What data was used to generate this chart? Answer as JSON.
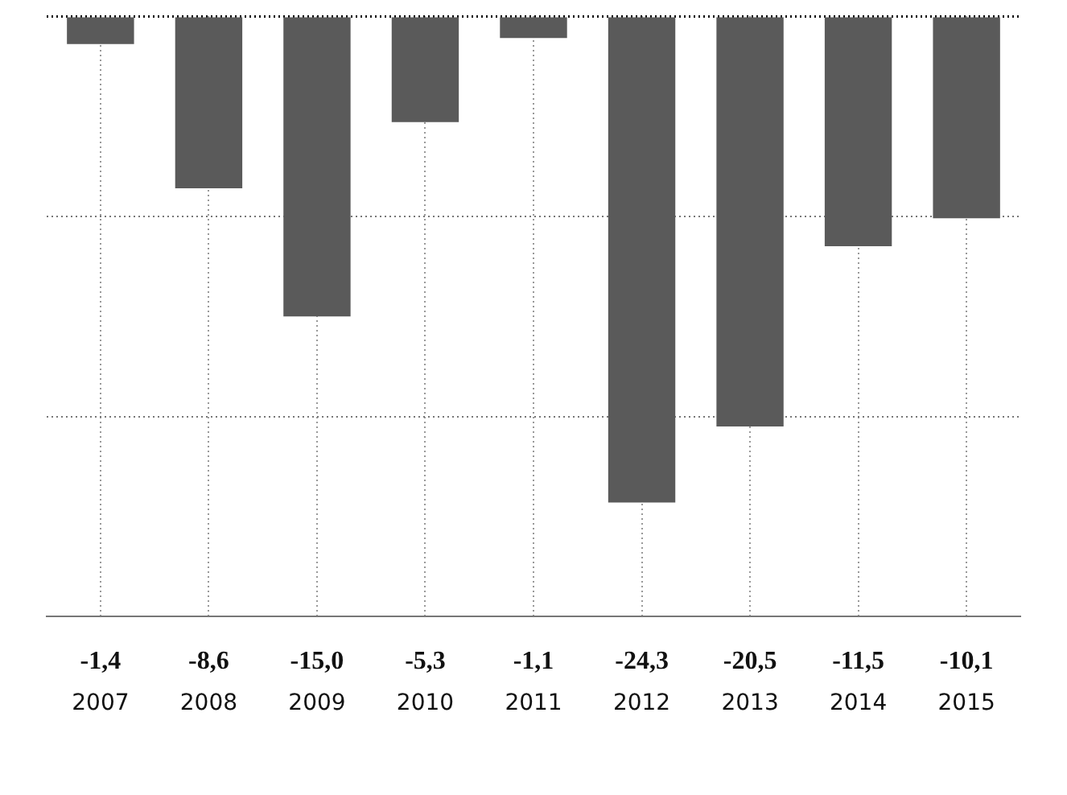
{
  "chart_data": {
    "type": "bar",
    "categories": [
      "2007",
      "2008",
      "2009",
      "2010",
      "2011",
      "2012",
      "2013",
      "2014",
      "2015"
    ],
    "values": [
      -1.4,
      -8.6,
      -15.0,
      -5.3,
      -1.1,
      -24.3,
      -20.5,
      -11.5,
      -10.1
    ],
    "value_labels": [
      "-1,4",
      "-8,6",
      "-15,0",
      "-5,3",
      "-1,1",
      "-24,3",
      "-20,5",
      "-11,5",
      "-10,1"
    ],
    "color": "#5a5a5a",
    "ylim": [
      -30,
      0
    ],
    "yticks": [
      {
        "value": -20,
        "label": null
      },
      {
        "value": -10,
        "label": null
      },
      {
        "value": 0,
        "label": null
      }
    ],
    "grid": true,
    "tick_labels": "x",
    "legend": false
  }
}
